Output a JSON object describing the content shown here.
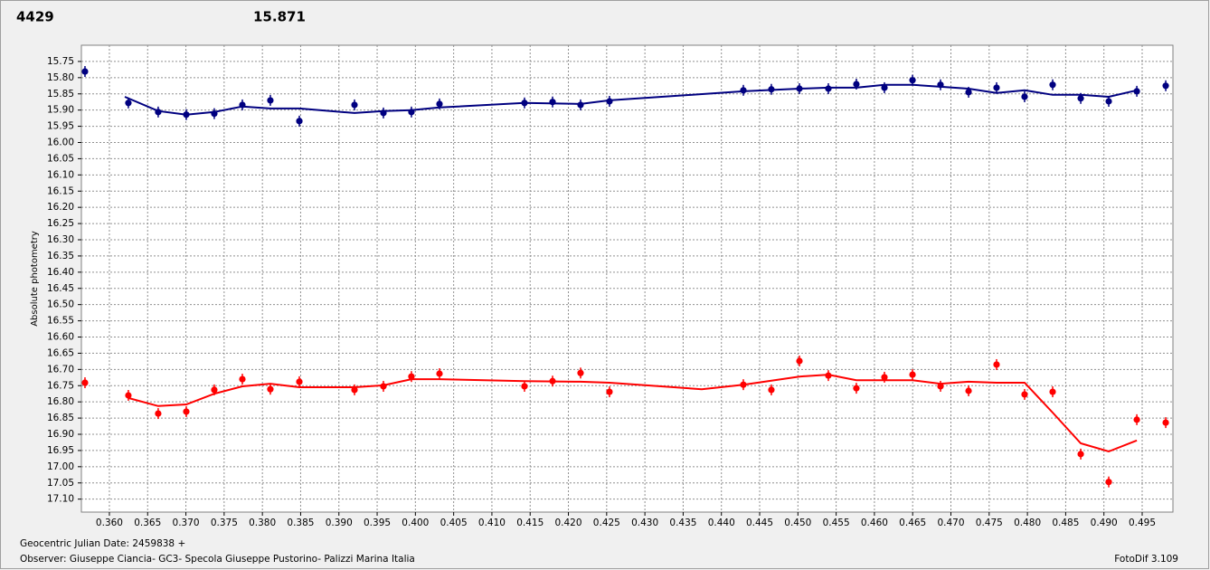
{
  "chart_data": {
    "type": "scatter",
    "title": "4429",
    "subtitle": "15.871",
    "ylabel": "Absolute photometry",
    "xlabel": "Geocentric Julian Date: 2459838 +",
    "annotations": [
      "Observer: Giuseppe Ciancia- GC3- Specola Giuseppe Pustorino- Palizzi Marina Italia",
      "FotoDif 3.109"
    ],
    "title_color": "#ff0000",
    "subtitle_color": "#000080",
    "xlim": [
      0.35634,
      0.49902
    ],
    "ylim": [
      15.7,
      17.14
    ],
    "y_inverted": true,
    "grid": true,
    "xticks": [
      {
        "value": 0.36,
        "label": "0.360"
      },
      0.365,
      {
        "value": 0.37,
        "label": "0.370"
      },
      0.375,
      {
        "value": 0.38,
        "label": "0.380"
      },
      0.385,
      {
        "value": 0.39,
        "label": "0.390"
      },
      0.395,
      {
        "value": 0.4,
        "label": "0.400"
      },
      0.405,
      {
        "value": 0.41,
        "label": "0.410"
      },
      0.415,
      {
        "value": 0.42,
        "label": "0.420"
      },
      0.425,
      {
        "value": 0.43,
        "label": "0.430"
      },
      0.435,
      {
        "value": 0.44,
        "label": "0.440"
      },
      0.445,
      {
        "value": 0.45,
        "label": "0.450"
      },
      0.455,
      {
        "value": 0.46,
        "label": "0.460"
      },
      0.465,
      {
        "value": 0.47,
        "label": "0.470"
      },
      0.475,
      {
        "value": 0.48,
        "label": "0.480"
      },
      0.485,
      {
        "value": 0.49,
        "label": "0.490"
      },
      0.495
    ],
    "yticks": [
      15.75,
      {
        "value": 15.8,
        "label": "15.80"
      },
      15.85,
      {
        "value": 15.9,
        "label": "15.90"
      },
      15.95,
      {
        "value": 16,
        "label": "16.00"
      },
      16.05,
      {
        "value": 16.1,
        "label": "16.10"
      },
      16.15,
      {
        "value": 16.2,
        "label": "16.20"
      },
      16.25,
      {
        "value": 16.3,
        "label": "16.30"
      },
      16.35,
      {
        "value": 16.4,
        "label": "16.40"
      },
      16.45,
      {
        "value": 16.5,
        "label": "16.50"
      },
      16.55,
      {
        "value": 16.6,
        "label": "16.60"
      },
      16.65,
      {
        "value": 16.7,
        "label": "16.70"
      },
      16.75,
      {
        "value": 16.8,
        "label": "16.80"
      },
      16.85,
      {
        "value": 16.9,
        "label": "16.90"
      },
      16.95,
      {
        "value": 17,
        "label": "17.00"
      },
      17.05,
      {
        "value": 17.1,
        "label": "17.10"
      }
    ],
    "series": [
      {
        "color": "#000080",
        "mode": "markers",
        "x": [
          0.35681,
          0.36248,
          0.36638,
          0.37005,
          0.37371,
          0.37738,
          0.38104,
          0.38483,
          0.39204,
          0.39582,
          0.39948,
          0.40315,
          0.41426,
          0.41793,
          0.42159,
          0.42537,
          0.44287,
          0.44653,
          0.4502,
          0.45398,
          0.45764,
          0.46131,
          0.46498,
          0.46864,
          0.47231,
          0.47597,
          0.47963,
          0.4833,
          0.48697,
          0.49063,
          0.4943,
          0.49808
        ],
        "values": [
          15.781,
          15.878,
          15.906,
          15.914,
          15.911,
          15.884,
          15.87,
          15.934,
          15.884,
          15.909,
          15.906,
          15.881,
          15.878,
          15.875,
          15.884,
          15.873,
          15.839,
          15.836,
          15.834,
          15.834,
          15.82,
          15.831,
          15.808,
          15.822,
          15.845,
          15.831,
          15.859,
          15.822,
          15.864,
          15.873,
          15.842,
          15.825
        ]
      },
      {
        "color": "#000080",
        "mode": "line",
        "x": [
          0.36201,
          0.36638,
          0.37005,
          0.37371,
          0.37738,
          0.38104,
          0.38483,
          0.39204,
          0.39582,
          0.39948,
          0.40315,
          0.41426,
          0.42159,
          0.42537,
          0.44287,
          0.4502,
          0.45398,
          0.45764,
          0.46131,
          0.46498,
          0.46864,
          0.47231,
          0.47597,
          0.47963,
          0.4833,
          0.48697,
          0.49063,
          0.4943
        ],
        "values": [
          15.859,
          15.903,
          15.914,
          15.906,
          15.889,
          15.895,
          15.895,
          15.909,
          15.903,
          15.9,
          15.892,
          15.878,
          15.881,
          15.87,
          15.842,
          15.834,
          15.831,
          15.831,
          15.822,
          15.822,
          15.828,
          15.834,
          15.847,
          15.839,
          15.853,
          15.853,
          15.859,
          15.839
        ]
      },
      {
        "color": "#ff0000",
        "mode": "markers",
        "x": [
          0.35681,
          0.36248,
          0.36638,
          0.37005,
          0.37371,
          0.37738,
          0.38104,
          0.38483,
          0.39204,
          0.39582,
          0.39948,
          0.40315,
          0.41426,
          0.41793,
          0.42159,
          0.42537,
          0.44287,
          0.44653,
          0.4502,
          0.45398,
          0.45764,
          0.46131,
          0.46498,
          0.46864,
          0.47231,
          0.47597,
          0.47963,
          0.4833,
          0.48697,
          0.49063,
          0.4943,
          0.49808
        ],
        "values": [
          16.741,
          16.78,
          16.836,
          16.83,
          16.763,
          16.73,
          16.761,
          16.738,
          16.763,
          16.752,
          16.722,
          16.713,
          16.752,
          16.736,
          16.711,
          16.769,
          16.747,
          16.763,
          16.674,
          16.719,
          16.758,
          16.724,
          16.716,
          16.752,
          16.766,
          16.685,
          16.777,
          16.769,
          16.961,
          17.047,
          16.855,
          16.864
        ]
      },
      {
        "color": "#ff0000",
        "mode": "line",
        "x": [
          0.36248,
          0.36638,
          0.37005,
          0.37371,
          0.37738,
          0.38104,
          0.38483,
          0.39204,
          0.39582,
          0.39948,
          0.40315,
          0.41426,
          0.42159,
          0.42537,
          0.43743,
          0.44287,
          0.4502,
          0.45398,
          0.45764,
          0.46131,
          0.46498,
          0.46864,
          0.47231,
          0.47597,
          0.47963,
          0.4833,
          0.48697,
          0.49063,
          0.4943
        ],
        "values": [
          16.788,
          16.813,
          16.808,
          16.775,
          16.752,
          16.744,
          16.755,
          16.755,
          16.749,
          16.73,
          16.73,
          16.736,
          16.738,
          16.741,
          16.761,
          16.747,
          16.722,
          16.716,
          16.733,
          16.733,
          16.733,
          16.744,
          16.738,
          16.741,
          16.741,
          16.833,
          16.928,
          16.953,
          16.919
        ]
      }
    ]
  }
}
